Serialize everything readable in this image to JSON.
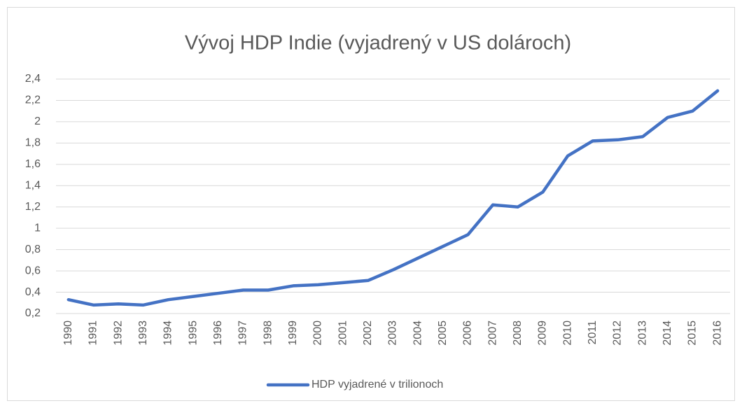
{
  "chart_data": {
    "type": "line",
    "title": "Vývoj HDP Indie (vyjadrený v US dolároch)",
    "categories": [
      "1990",
      "1991",
      "1992",
      "1993",
      "1994",
      "1995",
      "1996",
      "1997",
      "1998",
      "1999",
      "2000",
      "2001",
      "2002",
      "2003",
      "2004",
      "2005",
      "2006",
      "2007",
      "2008",
      "2009",
      "2010",
      "2011",
      "2012",
      "2013",
      "2014",
      "2015",
      "2016"
    ],
    "series": [
      {
        "name": "HDP vyjadrené v trilionoch",
        "color": "#4472c4",
        "values": [
          0.33,
          0.28,
          0.29,
          0.28,
          0.33,
          0.36,
          0.39,
          0.42,
          0.42,
          0.46,
          0.47,
          0.49,
          0.51,
          0.61,
          0.72,
          0.83,
          0.94,
          1.22,
          1.2,
          1.34,
          1.68,
          1.82,
          1.83,
          1.86,
          2.04,
          2.1,
          2.29
        ]
      }
    ],
    "ylim": [
      0.2,
      2.4
    ],
    "yticks": [
      {
        "value": 0.2,
        "label": "0,2"
      },
      {
        "value": 0.4,
        "label": "0,4"
      },
      {
        "value": 0.6,
        "label": "0,6"
      },
      {
        "value": 0.8,
        "label": "0,8"
      },
      1,
      {
        "value": 1.2,
        "label": "1,2"
      },
      {
        "value": 1.4,
        "label": "1,4"
      },
      {
        "value": 1.6,
        "label": "1,6"
      },
      {
        "value": 1.8,
        "label": "1,8"
      },
      2,
      {
        "value": 2.2,
        "label": "2,2"
      },
      {
        "value": 2.4,
        "label": "2,4"
      }
    ],
    "grid": true,
    "legend": "bottom"
  }
}
